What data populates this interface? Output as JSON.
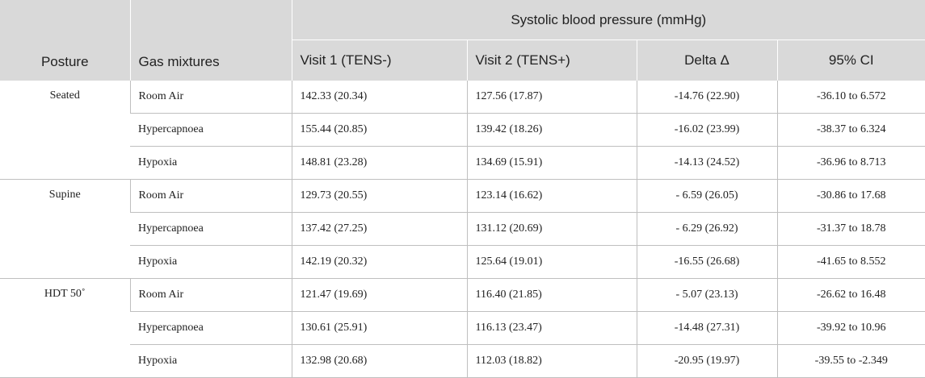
{
  "header": {
    "group_label": "Systolic blood pressure (mmHg)",
    "posture": "Posture",
    "gas_mixtures": "Gas mixtures",
    "visit1": "Visit 1 (TENS-)",
    "visit2": "Visit 2 (TENS+)",
    "delta": "Delta Δ",
    "ci": "95% CI"
  },
  "groups": [
    {
      "posture": "Seated",
      "rows": [
        {
          "gas": "Room Air",
          "v1": "142.33 (20.34)",
          "v2": "127.56 (17.87)",
          "delta": "-14.76 (22.90)",
          "ci": "-36.10 to 6.572"
        },
        {
          "gas": "Hypercapnoea",
          "v1": "155.44 (20.85)",
          "v2": "139.42 (18.26)",
          "delta": "-16.02 (23.99)",
          "ci": "-38.37 to 6.324"
        },
        {
          "gas": "Hypoxia",
          "v1": "148.81 (23.28)",
          "v2": "134.69 (15.91)",
          "delta": "-14.13 (24.52)",
          "ci": "-36.96 to 8.713"
        }
      ]
    },
    {
      "posture": "Supine",
      "rows": [
        {
          "gas": "Room Air",
          "v1": "129.73 (20.55)",
          "v2": "123.14 (16.62)",
          "delta": "- 6.59 (26.05)",
          "ci": "-30.86 to 17.68"
        },
        {
          "gas": "Hypercapnoea",
          "v1": "137.42 (27.25)",
          "v2": "131.12 (20.69)",
          "delta": "- 6.29 (26.92)",
          "ci": "-31.37 to 18.78"
        },
        {
          "gas": "Hypoxia",
          "v1": "142.19 (20.32)",
          "v2": "125.64 (19.01)",
          "delta": "-16.55 (26.68)",
          "ci": "-41.65 to 8.552"
        }
      ]
    },
    {
      "posture": "HDT 50˚",
      "rows": [
        {
          "gas": "Room Air",
          "v1": "121.47 (19.69)",
          "v2": "116.40 (21.85)",
          "delta": "- 5.07 (23.13)",
          "ci": "-26.62 to 16.48"
        },
        {
          "gas": "Hypercapnoea",
          "v1": "130.61 (25.91)",
          "v2": "116.13 (23.47)",
          "delta": "-14.48 (27.31)",
          "ci": "-39.92 to 10.96"
        },
        {
          "gas": "Hypoxia",
          "v1": "132.98 (20.68)",
          "v2": "112.03 (18.82)",
          "delta": "-20.95 (19.97)",
          "ci": "-39.55 to -2.349"
        }
      ]
    }
  ]
}
